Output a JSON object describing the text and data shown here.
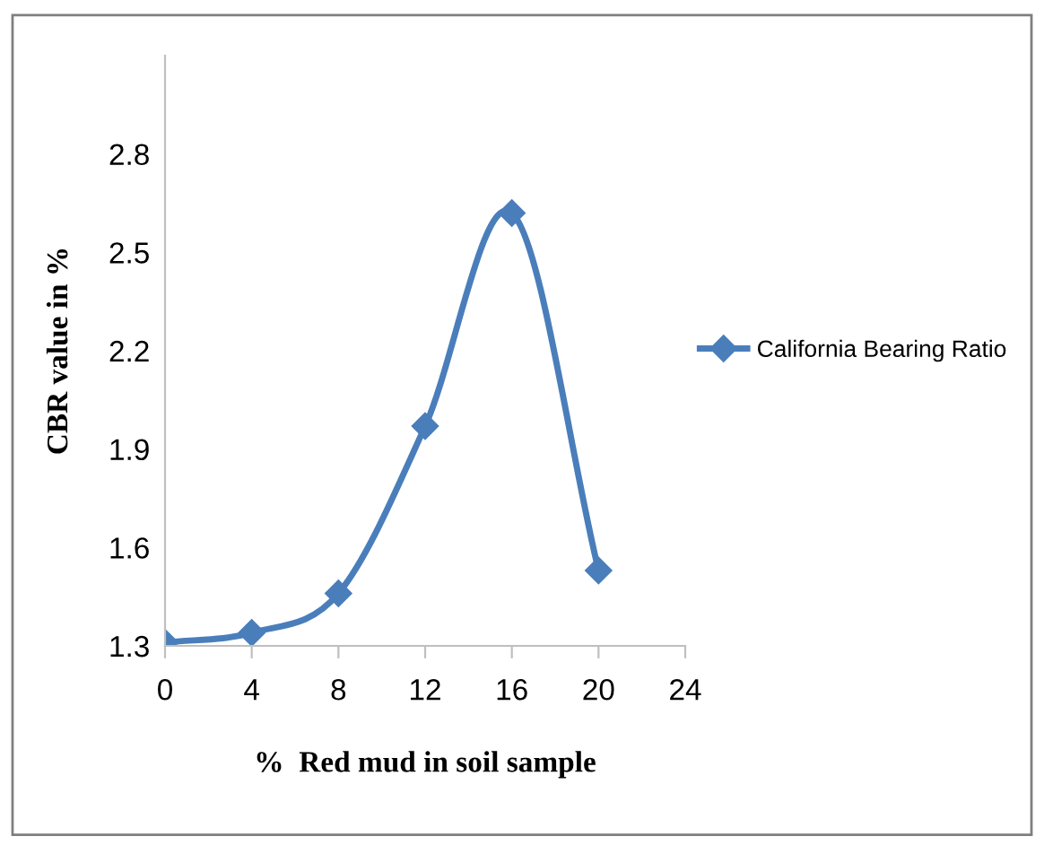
{
  "chart_data": {
    "type": "line",
    "xlabel": "%  Red mud in soil sample",
    "ylabel": "CBR value in %",
    "x": [
      0,
      4,
      8,
      12,
      16,
      20
    ],
    "series": [
      {
        "name": "California Bearing Ratio",
        "color": "#4a7ebb",
        "values": [
          1.31,
          1.34,
          1.46,
          1.97,
          2.62,
          1.53
        ]
      }
    ],
    "xlim": [
      0,
      24
    ],
    "xticks": [
      0,
      4,
      8,
      12,
      16,
      20,
      24
    ],
    "ylim": [
      1.3,
      3.1
    ],
    "yticks": [
      1.3,
      1.6,
      1.9,
      2.2,
      2.5,
      2.8
    ],
    "grid": false,
    "legend": "right",
    "marker": "diamond",
    "line_style": "solid"
  }
}
